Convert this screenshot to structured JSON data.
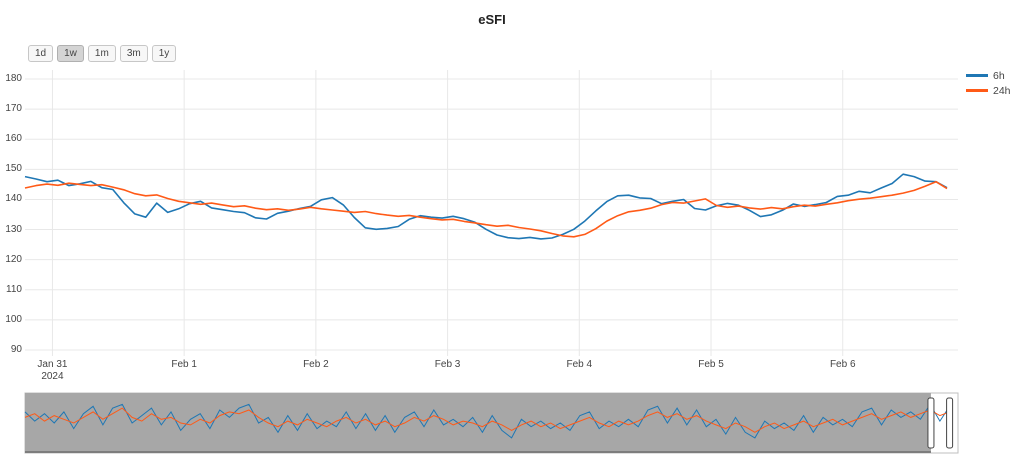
{
  "title": "eSFI",
  "range_selector": {
    "buttons": [
      {
        "label": "1d",
        "active": false
      },
      {
        "label": "1w",
        "active": true
      },
      {
        "label": "1m",
        "active": false
      },
      {
        "label": "3m",
        "active": false
      },
      {
        "label": "1y",
        "active": false
      }
    ]
  },
  "legend": {
    "position": "right",
    "items": [
      {
        "label": "6h",
        "color": "#1f77b4"
      },
      {
        "label": "24h",
        "color": "#ff5a17"
      }
    ]
  },
  "chart_data": {
    "type": "line",
    "title": "eSFI",
    "xlabel": "",
    "ylabel": "",
    "grid": true,
    "legend_position": "right",
    "x_axis": {
      "tick_labels": [
        [
          "Jan 31",
          "2024"
        ],
        [
          "Feb 1"
        ],
        [
          "Feb 2"
        ],
        [
          "Feb 3"
        ],
        [
          "Feb 4"
        ],
        [
          "Feb 5"
        ],
        [
          "Feb 6"
        ]
      ],
      "tick_hours": [
        5,
        29,
        53,
        77,
        101,
        125,
        149
      ],
      "range_hours": [
        0,
        170
      ],
      "start_label": "Jan 30 19:00, 2024",
      "step_hours": 2
    },
    "y_axis": {
      "ticks": [
        90,
        100,
        110,
        120,
        130,
        140,
        150,
        160,
        170,
        180
      ],
      "range": [
        88,
        183
      ]
    },
    "series": [
      {
        "name": "6h",
        "color": "#1f77b4",
        "values": [
          147.6,
          146.8,
          145.9,
          146.4,
          144.6,
          145.2,
          146.0,
          143.9,
          143.3,
          138.9,
          135.2,
          134.1,
          138.8,
          135.7,
          136.9,
          138.6,
          139.4,
          137.2,
          136.6,
          136.0,
          135.6,
          133.9,
          133.5,
          135.4,
          136.1,
          137.0,
          137.7,
          139.9,
          140.6,
          138.2,
          134.0,
          130.6,
          130.1,
          130.4,
          131.0,
          133.4,
          134.6,
          134.1,
          133.8,
          134.4,
          133.6,
          132.4,
          130.1,
          128.2,
          127.3,
          127.0,
          127.4,
          126.9,
          127.2,
          128.4,
          130.1,
          132.8,
          136.2,
          139.3,
          141.2,
          141.4,
          140.5,
          140.3,
          138.6,
          139.4,
          140.0,
          137.0,
          136.5,
          137.9,
          138.7,
          138.1,
          136.4,
          134.3,
          134.9,
          136.4,
          138.5,
          137.7,
          138.3,
          139.0,
          141.0,
          141.4,
          142.7,
          142.2,
          143.8,
          145.3,
          148.4,
          147.6,
          146.1,
          145.9,
          143.9
        ]
      },
      {
        "name": "24h",
        "color": "#ff5a17",
        "values": [
          143.8,
          144.6,
          145.1,
          144.7,
          145.4,
          145.0,
          144.6,
          144.9,
          144.1,
          143.2,
          141.9,
          141.2,
          141.5,
          140.3,
          139.4,
          138.9,
          138.4,
          138.8,
          138.2,
          137.6,
          137.9,
          137.1,
          136.6,
          136.9,
          136.4,
          136.8,
          137.4,
          136.9,
          136.5,
          136.1,
          135.7,
          136.0,
          135.3,
          134.8,
          134.4,
          134.7,
          134.1,
          133.6,
          133.2,
          133.4,
          132.7,
          132.2,
          131.6,
          131.1,
          131.4,
          130.7,
          130.2,
          129.6,
          128.7,
          127.9,
          127.6,
          128.4,
          130.3,
          132.8,
          134.6,
          135.9,
          136.4,
          137.1,
          138.3,
          139.0,
          138.8,
          139.5,
          140.2,
          138.0,
          137.4,
          137.8,
          137.2,
          136.8,
          137.3,
          136.9,
          137.6,
          138.1,
          137.8,
          138.4,
          138.9,
          139.6,
          140.1,
          140.4,
          140.9,
          141.4,
          142.1,
          143.0,
          144.4,
          145.9,
          143.6
        ]
      }
    ]
  },
  "range_slider": {
    "mask_color": "#a7a7a7",
    "selection": {
      "start_frac": 0.971,
      "end_frac": 0.991
    },
    "y_range": [
      124,
      152
    ],
    "series": [
      {
        "name": "6h",
        "color": "#1f77b4",
        "values": [
          144,
          139,
          143,
          138,
          144,
          135,
          143,
          147,
          137,
          146,
          148,
          138,
          142,
          146,
          137,
          144,
          134,
          140,
          143,
          135,
          145,
          141,
          146,
          148,
          138,
          141,
          133,
          142,
          134,
          143,
          135,
          139,
          136,
          144,
          135,
          143,
          134,
          142,
          133,
          141,
          144,
          136,
          145,
          137,
          140,
          136,
          141,
          133,
          142,
          134,
          130,
          140,
          136,
          139,
          135,
          138,
          134,
          142,
          144,
          135,
          139,
          136,
          140,
          136,
          145,
          147,
          138,
          146,
          137,
          145,
          136,
          140,
          132,
          141,
          133,
          130,
          139,
          135,
          138,
          134,
          142,
          133,
          141,
          137,
          140,
          136,
          144,
          146,
          137,
          145,
          141,
          144,
          140,
          148,
          139,
          147
        ]
      },
      {
        "name": "24h",
        "color": "#ff5a17",
        "values": [
          141,
          143,
          139,
          142,
          140,
          138,
          141,
          144,
          140,
          143,
          146,
          141,
          139,
          143,
          140,
          141,
          138,
          137,
          140,
          138,
          142,
          144,
          143,
          145,
          141,
          138,
          136,
          139,
          137,
          140,
          138,
          136,
          139,
          141,
          138,
          140,
          137,
          139,
          136,
          138,
          141,
          139,
          142,
          140,
          137,
          139,
          138,
          136,
          139,
          137,
          134,
          137,
          139,
          136,
          138,
          135,
          137,
          139,
          141,
          138,
          136,
          139,
          137,
          139,
          142,
          144,
          141,
          143,
          140,
          142,
          139,
          137,
          135,
          138,
          136,
          133,
          136,
          138,
          135,
          137,
          139,
          136,
          138,
          140,
          137,
          139,
          141,
          143,
          140,
          142,
          144,
          141,
          143,
          145,
          142,
          144
        ]
      }
    ]
  }
}
